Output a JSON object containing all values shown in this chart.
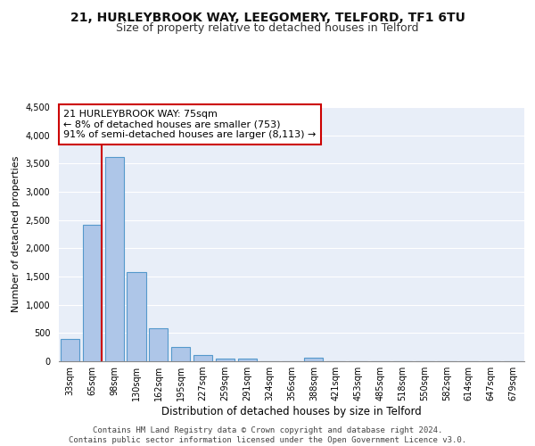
{
  "title1": "21, HURLEYBROOK WAY, LEEGOMERY, TELFORD, TF1 6TU",
  "title2": "Size of property relative to detached houses in Telford",
  "xlabel": "Distribution of detached houses by size in Telford",
  "ylabel": "Number of detached properties",
  "categories": [
    "33sqm",
    "65sqm",
    "98sqm",
    "130sqm",
    "162sqm",
    "195sqm",
    "227sqm",
    "259sqm",
    "291sqm",
    "324sqm",
    "356sqm",
    "388sqm",
    "421sqm",
    "453sqm",
    "485sqm",
    "518sqm",
    "550sqm",
    "582sqm",
    "614sqm",
    "647sqm",
    "679sqm"
  ],
  "values": [
    390,
    2420,
    3620,
    1580,
    590,
    250,
    110,
    55,
    40,
    0,
    0,
    65,
    0,
    0,
    0,
    0,
    0,
    0,
    0,
    0,
    0
  ],
  "bar_color": "#aec6e8",
  "bar_edge_color": "#5599cc",
  "vline_color": "#cc0000",
  "annotation_text": "21 HURLEYBROOK WAY: 75sqm\n← 8% of detached houses are smaller (753)\n91% of semi-detached houses are larger (8,113) →",
  "annotation_box_color": "#ffffff",
  "annotation_box_edge": "#cc0000",
  "ylim": [
    0,
    4500
  ],
  "yticks": [
    0,
    500,
    1000,
    1500,
    2000,
    2500,
    3000,
    3500,
    4000,
    4500
  ],
  "background_color": "#e8eef8",
  "footer": "Contains HM Land Registry data © Crown copyright and database right 2024.\nContains public sector information licensed under the Open Government Licence v3.0.",
  "title1_fontsize": 10,
  "title2_fontsize": 9,
  "xlabel_fontsize": 8.5,
  "ylabel_fontsize": 8,
  "tick_fontsize": 7,
  "annotation_fontsize": 8,
  "footer_fontsize": 6.5
}
